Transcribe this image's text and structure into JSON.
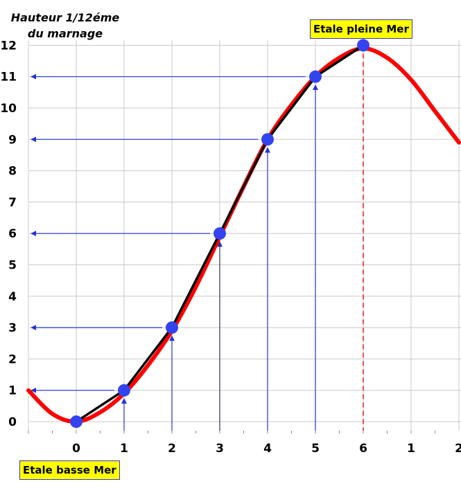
{
  "y_title_line1": "Hauteur 1/12éme",
  "y_title_line2": "du marnage",
  "label_high": "Etale pleine Mer",
  "label_low": "Etale basse Mer",
  "chart_data": {
    "type": "line",
    "x_tick_labels": [
      "0",
      "1",
      "2",
      "3",
      "4",
      "5",
      "6",
      "1",
      "2"
    ],
    "y_tick_labels": [
      "0",
      "1",
      "2",
      "3",
      "4",
      "5",
      "6",
      "7",
      "8",
      "9",
      "10",
      "11",
      "12"
    ],
    "xlim": [
      -1,
      8
    ],
    "ylim": [
      0,
      12
    ],
    "grid": true,
    "series": [
      {
        "role": "twelfths-rule polyline",
        "color": "#000000",
        "points": [
          [
            0,
            0
          ],
          [
            1,
            1
          ],
          [
            2,
            3
          ],
          [
            3,
            6
          ],
          [
            4,
            9
          ],
          [
            5,
            11
          ],
          [
            6,
            12
          ]
        ]
      },
      {
        "role": "sinusoidal tide curve",
        "color": "#ff0000",
        "points": [
          [
            -1,
            1
          ],
          [
            -0.5,
            0.25
          ],
          [
            0,
            0
          ],
          [
            0.5,
            0.3
          ],
          [
            1,
            0.9
          ],
          [
            1.5,
            1.8
          ],
          [
            2,
            2.9
          ],
          [
            2.5,
            4.3
          ],
          [
            3,
            5.9
          ],
          [
            3.5,
            7.5
          ],
          [
            4,
            9.0
          ],
          [
            4.5,
            10.1
          ],
          [
            5,
            11.0
          ],
          [
            5.5,
            11.6
          ],
          [
            6,
            11.9
          ],
          [
            6.5,
            11.6
          ],
          [
            7,
            10.9
          ],
          [
            7.5,
            9.9
          ],
          [
            8,
            8.9
          ]
        ]
      }
    ],
    "markers": {
      "color": "#3344ee",
      "points": [
        [
          0,
          0
        ],
        [
          1,
          1
        ],
        [
          2,
          3
        ],
        [
          3,
          6
        ],
        [
          4,
          9
        ],
        [
          5,
          11
        ],
        [
          6,
          12
        ]
      ]
    },
    "vertical_guides": [
      {
        "x": 1,
        "y_top": 1
      },
      {
        "x": 2,
        "y_top": 3
      },
      {
        "x": 3,
        "y_top": 6
      },
      {
        "x": 4,
        "y_top": 9
      },
      {
        "x": 5,
        "y_top": 11
      }
    ],
    "horizontal_arrows": [
      {
        "y": 1,
        "x_from": 1
      },
      {
        "y": 3,
        "x_from": 2
      },
      {
        "y": 6,
        "x_from": 3
      },
      {
        "y": 9,
        "x_from": 4
      },
      {
        "y": 11,
        "x_from": 5
      }
    ],
    "high_tide_x": 6
  }
}
